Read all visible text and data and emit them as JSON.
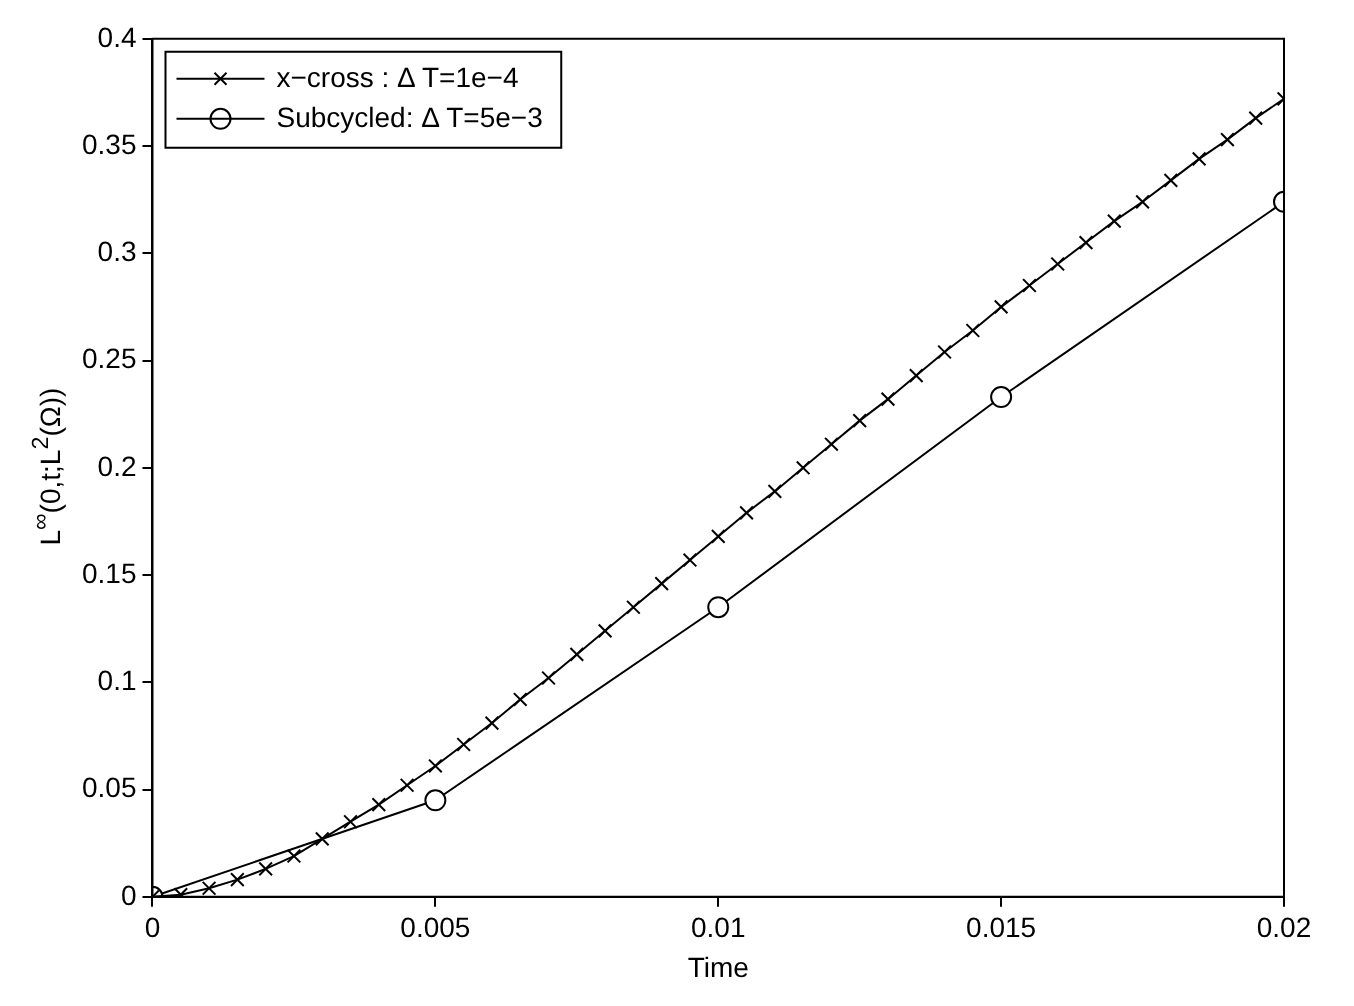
{
  "chart_data": {
    "type": "line",
    "xlabel": "Time",
    "ylabel": "L$^{∞}$(0,t;L$^{2}$(Ω))",
    "xlim": [
      0,
      0.02
    ],
    "xticks": [
      0,
      0.005,
      0.01,
      0.015,
      0.02
    ],
    "ylim": [
      0,
      0.4
    ],
    "yticks": [
      0,
      0.05,
      0.1,
      0.15,
      0.2,
      0.25,
      0.3,
      0.35,
      0.4
    ],
    "grid": false,
    "legend": "top left",
    "line_style": "solid",
    "series": [
      {
        "name": "x−cross : Δ T=1e−4",
        "color": "#000000",
        "marker": "cross",
        "x": [
          0,
          0.0005,
          0.001,
          0.0015,
          0.002,
          0.0025,
          0.003,
          0.0035,
          0.004,
          0.0045,
          0.005,
          0.0055,
          0.006,
          0.0065,
          0.007,
          0.0075,
          0.008,
          0.0085,
          0.009,
          0.0095,
          0.01,
          0.0105,
          0.011,
          0.0115,
          0.012,
          0.0125,
          0.013,
          0.0135,
          0.014,
          0.0145,
          0.015,
          0.0155,
          0.016,
          0.0165,
          0.017,
          0.0175,
          0.018,
          0.0185,
          0.019,
          0.0195,
          0.02
        ],
        "values": [
          0,
          0.001,
          0.004,
          0.008,
          0.013,
          0.019,
          0.027,
          0.035,
          0.043,
          0.052,
          0.061,
          0.071,
          0.081,
          0.092,
          0.102,
          0.113,
          0.124,
          0.135,
          0.146,
          0.157,
          0.168,
          0.179,
          0.189,
          0.2,
          0.211,
          0.222,
          0.232,
          0.243,
          0.254,
          0.264,
          0.275,
          0.285,
          0.295,
          0.305,
          0.315,
          0.324,
          0.334,
          0.344,
          0.353,
          0.363,
          0.372
        ]
      },
      {
        "name": "Subcycled: Δ T=5e−3",
        "color": "#000000",
        "marker": "circle",
        "x": [
          0,
          0.005,
          0.01,
          0.015,
          0.02
        ],
        "values": [
          0,
          0.045,
          0.135,
          0.233,
          0.324
        ]
      }
    ]
  }
}
